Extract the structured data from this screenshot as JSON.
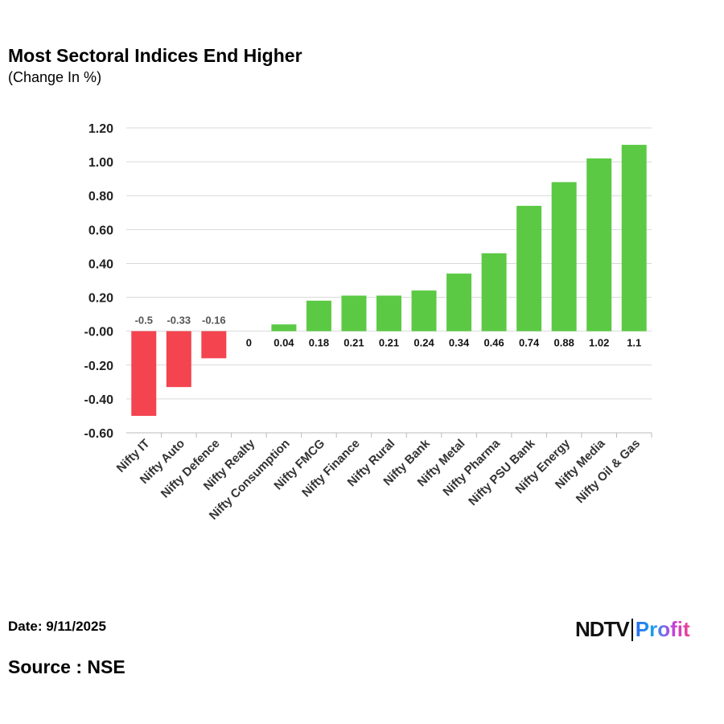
{
  "header": {
    "title": "Most Sectoral Indices End Higher",
    "subtitle": "(Change In %)"
  },
  "footer": {
    "date": "Date: 9/11/2025",
    "source": "Source : NSE",
    "logo_left": "NDTV",
    "logo_right": "Profit"
  },
  "colors": {
    "positive": "#5cc945",
    "negative": "#f3444f",
    "grid": "#d9d9d9"
  },
  "chart_data": {
    "type": "bar",
    "title": "Most Sectoral Indices End Higher",
    "subtitle": "(Change In %)",
    "categories": [
      "Nifty IT",
      "Nifty Auto",
      "Nifty Defence",
      "Nifty Realty",
      "Nifty Consumption",
      "Nifty FMCG",
      "Nifty Finance",
      "Nifty Rural",
      "Nifty Bank",
      "Nifty Metal",
      "Nifty Pharma",
      "Nifty PSU Bank",
      "Nifty Energy",
      "Nifty Media",
      "Nifty Oil & Gas"
    ],
    "values": [
      -0.5,
      -0.33,
      -0.16,
      0,
      0.04,
      0.18,
      0.21,
      0.21,
      0.24,
      0.34,
      0.46,
      0.74,
      0.88,
      1.02,
      1.1
    ],
    "data_labels": [
      "-0.5",
      "-0.33",
      "-0.16",
      "0",
      "0.04",
      "0.18",
      "0.21",
      "0.21",
      "0.24",
      "0.34",
      "0.46",
      "0.74",
      "0.88",
      "1.02",
      "1.1"
    ],
    "yticks": [
      "1.20",
      "1.00",
      "0.80",
      "0.60",
      "0.40",
      "0.20",
      "-0.00",
      "-0.20",
      "-0.40",
      "-0.60"
    ],
    "ylim": [
      -0.6,
      1.2
    ],
    "grid": true,
    "legend": "none"
  }
}
